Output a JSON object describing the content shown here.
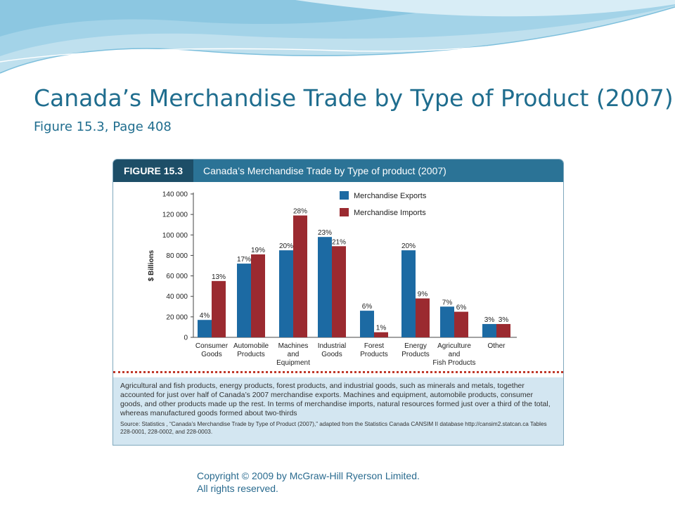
{
  "slide": {
    "title": "Canada’s Merchandise Trade by Type of Product (2007)",
    "subtitle": "Figure 15.3, Page 408",
    "copyright": "Copyright © 2009 by McGraw-Hill Ryerson Limited. All rights reserved."
  },
  "figure": {
    "label": "FIGURE 15.3",
    "title": "Canada’s Merchandise Trade by Type of product (2007)",
    "caption": "Agricultural and fish products, energy products, forest products, and industrial goods, such as minerals and metals, together accounted for just over half of Canada’s 2007 merchandise exports. Machines and equipment, automobile products, consumer goods, and other products made up the rest. In terms of merchandise imports, natural resources formed just over a third of the total, whereas manufactured goods formed about two-thirds",
    "source": "Source: Statistics , “Canada’s Merchandise Trade by Type of Product (2007),” adapted from the Statistics Canada CANSIM II database http://cansim2.statcan.ca Tables 228-0001, 228-0002, and 228-0003."
  },
  "colors": {
    "exports": "#1c6aa3",
    "imports": "#9b2a30",
    "accent": "#2b7396",
    "title": "#1f6d8e"
  },
  "chart_data": {
    "type": "bar",
    "ylabel": "$ Billions",
    "ylim": [
      0,
      140000
    ],
    "yticks": [
      0,
      20000,
      40000,
      60000,
      80000,
      100000,
      120000,
      140000
    ],
    "ytick_labels": [
      "0",
      "20 000",
      "40 000",
      "60 000",
      "80 000",
      "100 000",
      "120 000",
      "140 000"
    ],
    "categories": [
      [
        "Consumer",
        "Goods"
      ],
      [
        "Automobile",
        "Products"
      ],
      [
        "Machines",
        "and",
        "Equipment"
      ],
      [
        "Industrial",
        "Goods"
      ],
      [
        "Forest",
        "Products"
      ],
      [
        "Energy",
        "Products"
      ],
      [
        "Agriculture",
        "and",
        "Fish Products"
      ],
      [
        "Other"
      ]
    ],
    "legend_position": "top-right",
    "series": [
      {
        "name": "Merchandise Exports",
        "values": [
          17000,
          72000,
          85000,
          98000,
          26000,
          85000,
          30000,
          13000
        ],
        "labels": [
          "4%",
          "17%",
          "20%",
          "23%",
          "6%",
          "20%",
          "7%",
          "3%"
        ]
      },
      {
        "name": "Merchandise Imports",
        "values": [
          55000,
          81000,
          119000,
          89000,
          5000,
          38000,
          25000,
          13000
        ],
        "labels": [
          "13%",
          "19%",
          "28%",
          "21%",
          "1%",
          "9%",
          "6%",
          "3%"
        ]
      }
    ]
  }
}
